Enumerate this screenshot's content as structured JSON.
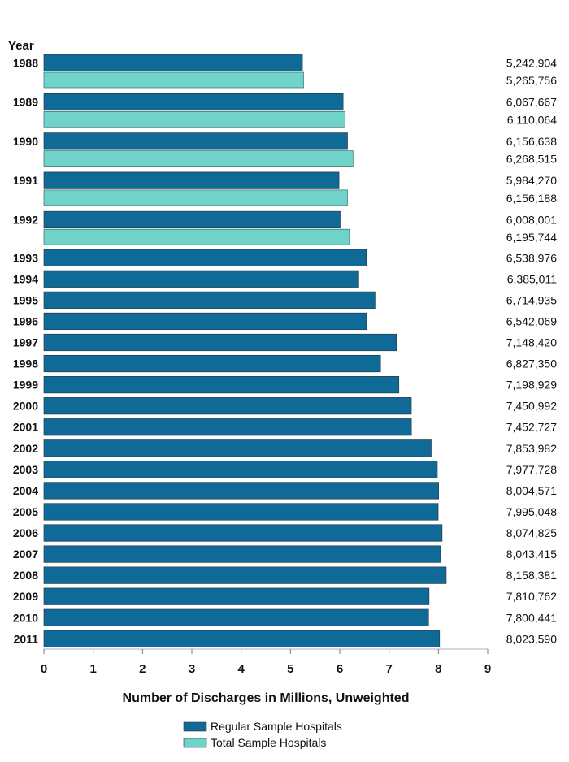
{
  "chart_data": {
    "type": "bar",
    "orientation": "horizontal",
    "title": "",
    "ylabel": "Year",
    "xlabel": "Number of Discharges in Millions, Unweighted",
    "xlim": [
      0,
      9
    ],
    "xticks": [
      0,
      1,
      2,
      3,
      4,
      5,
      6,
      7,
      8,
      9
    ],
    "grid": false,
    "legend_position": "bottom",
    "colors": {
      "regular": "#0f6a98",
      "total": "#6fd3c9"
    },
    "series": [
      {
        "name": "Regular Sample Hospitals",
        "key": "regular"
      },
      {
        "name": "Total Sample Hospitals",
        "key": "total"
      }
    ],
    "rows": [
      {
        "year": "1988",
        "regular": 5242904,
        "regular_label": "5,242,904",
        "total": 5265756,
        "total_label": "5,265,756"
      },
      {
        "year": "1989",
        "regular": 6067667,
        "regular_label": "6,067,667",
        "total": 6110064,
        "total_label": "6,110,064"
      },
      {
        "year": "1990",
        "regular": 6156638,
        "regular_label": "6,156,638",
        "total": 6268515,
        "total_label": "6,268,515"
      },
      {
        "year": "1991",
        "regular": 5984270,
        "regular_label": "5,984,270",
        "total": 6156188,
        "total_label": "6,156,188"
      },
      {
        "year": "1992",
        "regular": 6008001,
        "regular_label": "6,008,001",
        "total": 6195744,
        "total_label": "6,195,744"
      },
      {
        "year": "1993",
        "regular": 6538976,
        "regular_label": "6,538,976"
      },
      {
        "year": "1994",
        "regular": 6385011,
        "regular_label": "6,385,011"
      },
      {
        "year": "1995",
        "regular": 6714935,
        "regular_label": "6,714,935"
      },
      {
        "year": "1996",
        "regular": 6542069,
        "regular_label": "6,542,069"
      },
      {
        "year": "1997",
        "regular": 7148420,
        "regular_label": "7,148,420"
      },
      {
        "year": "1998",
        "regular": 6827350,
        "regular_label": "6,827,350"
      },
      {
        "year": "1999",
        "regular": 7198929,
        "regular_label": "7,198,929"
      },
      {
        "year": "2000",
        "regular": 7450992,
        "regular_label": "7,450,992"
      },
      {
        "year": "2001",
        "regular": 7452727,
        "regular_label": "7,452,727"
      },
      {
        "year": "2002",
        "regular": 7853982,
        "regular_label": "7,853,982"
      },
      {
        "year": "2003",
        "regular": 7977728,
        "regular_label": "7,977,728"
      },
      {
        "year": "2004",
        "regular": 8004571,
        "regular_label": "8,004,571"
      },
      {
        "year": "2005",
        "regular": 7995048,
        "regular_label": "7,995,048"
      },
      {
        "year": "2006",
        "regular": 8074825,
        "regular_label": "8,074,825"
      },
      {
        "year": "2007",
        "regular": 8043415,
        "regular_label": "8,043,415"
      },
      {
        "year": "2008",
        "regular": 8158381,
        "regular_label": "8,158,381"
      },
      {
        "year": "2009",
        "regular": 7810762,
        "regular_label": "7,810,762"
      },
      {
        "year": "2010",
        "regular": 7800441,
        "regular_label": "7,800,441"
      },
      {
        "year": "2011",
        "regular": 8023590,
        "regular_label": "8,023,590"
      }
    ]
  }
}
